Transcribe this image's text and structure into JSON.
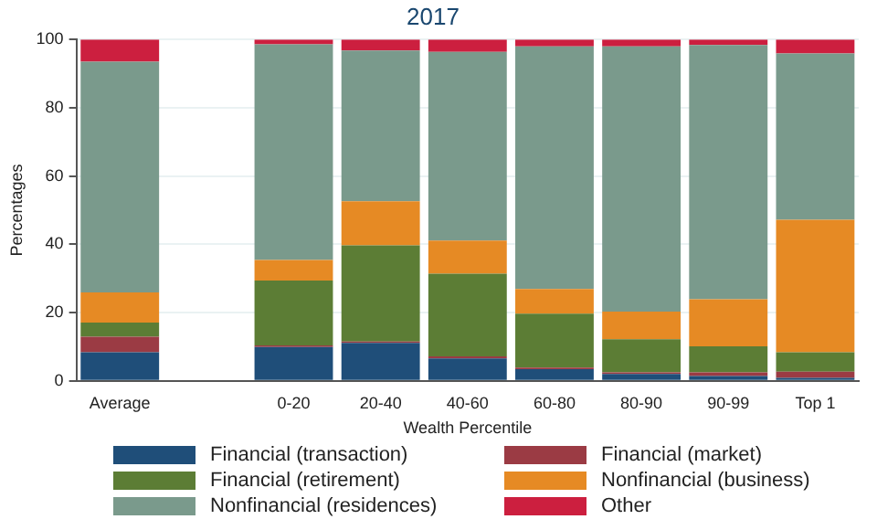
{
  "chart_data": {
    "type": "bar",
    "title": "2017",
    "xlabel": "Wealth Percentile",
    "ylabel": "Percentages",
    "categories": [
      "Average",
      null,
      "0-20",
      "20-40",
      "40-60",
      "60-80",
      "80-90",
      "90-99",
      "Top 1"
    ],
    "stacked": true,
    "ylim": [
      0,
      100
    ],
    "yticks": [
      0,
      20,
      40,
      60,
      80,
      100
    ],
    "grid": "y",
    "legend": "bottom",
    "series": [
      {
        "name": "Financial (transaction)",
        "color": "#1f4e79",
        "values": [
          8.4,
          null,
          9.9,
          11.1,
          6.6,
          3.4,
          2.0,
          1.4,
          0.9
        ]
      },
      {
        "name": "Financial (market)",
        "color": "#9b3b44",
        "values": [
          4.5,
          null,
          0.5,
          0.4,
          0.6,
          0.5,
          0.5,
          1.1,
          1.8
        ]
      },
      {
        "name": "Financial (retirement)",
        "color": "#5c7d35",
        "values": [
          4.2,
          null,
          19.0,
          28.2,
          24.2,
          15.8,
          9.7,
          7.6,
          5.7
        ]
      },
      {
        "name": "Nonfinancial (business)",
        "color": "#e68a24",
        "values": [
          8.8,
          null,
          6.0,
          12.9,
          9.7,
          7.2,
          8.1,
          13.8,
          38.8
        ]
      },
      {
        "name": "Nonfinancial (residences)",
        "color": "#7a9a8c",
        "values": [
          67.6,
          null,
          63.2,
          44.2,
          55.3,
          71.1,
          77.7,
          74.5,
          48.7
        ]
      },
      {
        "name": "Other",
        "color": "#cc1f3f",
        "values": [
          6.5,
          null,
          1.4,
          3.2,
          3.6,
          2.0,
          2.0,
          1.6,
          4.1
        ]
      }
    ]
  }
}
